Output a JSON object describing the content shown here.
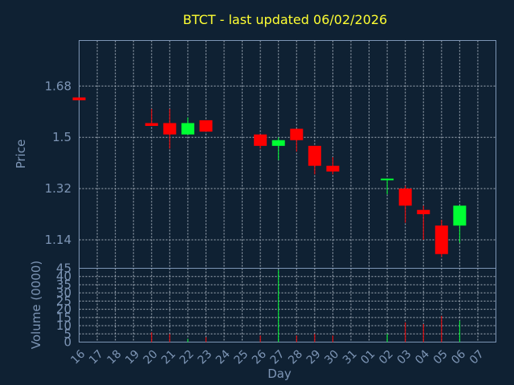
{
  "chart_data": {
    "type": "candlestick",
    "title": "BTCT - last updated 06/02/2026",
    "xlabel": "Day",
    "ylabel": "Price",
    "volume_label": "Volume (0000)",
    "x": [
      "16",
      "17",
      "18",
      "19",
      "20",
      "21",
      "22",
      "23",
      "24",
      "25",
      "26",
      "27",
      "28",
      "29",
      "30",
      "31",
      "01",
      "02",
      "03",
      "04",
      "05",
      "06",
      "07"
    ],
    "y_ticks": [
      1.14,
      1.32,
      1.5,
      1.68
    ],
    "y_tick_labels": [
      "1.14",
      "1.32",
      "1.5",
      "1.68"
    ],
    "ylim": [
      1.04,
      1.84
    ],
    "volume_ticks": [
      0,
      5,
      10,
      15,
      20,
      25,
      30,
      35,
      40,
      45
    ],
    "volume_lim": [
      0,
      45
    ],
    "grid": true,
    "candles": [
      {
        "x": "16",
        "open": 1.64,
        "close": 1.63,
        "high": 1.64,
        "low": 1.63,
        "volume": 0
      },
      {
        "x": "20",
        "open": 1.55,
        "close": 1.54,
        "high": 1.6,
        "low": 1.54,
        "volume": 6
      },
      {
        "x": "21",
        "open": 1.55,
        "close": 1.51,
        "high": 1.6,
        "low": 1.46,
        "volume": 5
      },
      {
        "x": "22",
        "open": 1.51,
        "close": 1.55,
        "high": 1.57,
        "low": 1.51,
        "volume": 2
      },
      {
        "x": "23",
        "open": 1.56,
        "close": 1.52,
        "high": 1.56,
        "low": 1.52,
        "volume": 3
      },
      {
        "x": "26",
        "open": 1.51,
        "close": 1.47,
        "high": 1.51,
        "low": 1.46,
        "volume": 4
      },
      {
        "x": "27",
        "open": 1.47,
        "close": 1.49,
        "high": 1.5,
        "low": 1.42,
        "volume": 44
      },
      {
        "x": "28",
        "open": 1.53,
        "close": 1.49,
        "high": 1.53,
        "low": 1.45,
        "volume": 4
      },
      {
        "x": "29",
        "open": 1.47,
        "close": 1.4,
        "high": 1.47,
        "low": 1.37,
        "volume": 5
      },
      {
        "x": "30",
        "open": 1.4,
        "close": 1.38,
        "high": 1.43,
        "low": 1.37,
        "volume": 4
      },
      {
        "x": "02",
        "open": 1.35,
        "close": 1.355,
        "high": 1.355,
        "low": 1.3,
        "volume": 5
      },
      {
        "x": "03",
        "open": 1.32,
        "close": 1.26,
        "high": 1.33,
        "low": 1.2,
        "volume": 12
      },
      {
        "x": "04",
        "open": 1.245,
        "close": 1.23,
        "high": 1.26,
        "low": 1.14,
        "volume": 11
      },
      {
        "x": "05",
        "open": 1.19,
        "close": 1.09,
        "high": 1.21,
        "low": 1.08,
        "volume": 16
      },
      {
        "x": "06",
        "open": 1.19,
        "close": 1.26,
        "high": 1.26,
        "low": 1.13,
        "volume": 13
      }
    ],
    "colors": {
      "up": "#00ff33",
      "down": "#ff0000",
      "title": "#ffff33",
      "axis_text": "#7d95b5",
      "background": "#0f2133",
      "grid": "#c9d2dc"
    }
  }
}
